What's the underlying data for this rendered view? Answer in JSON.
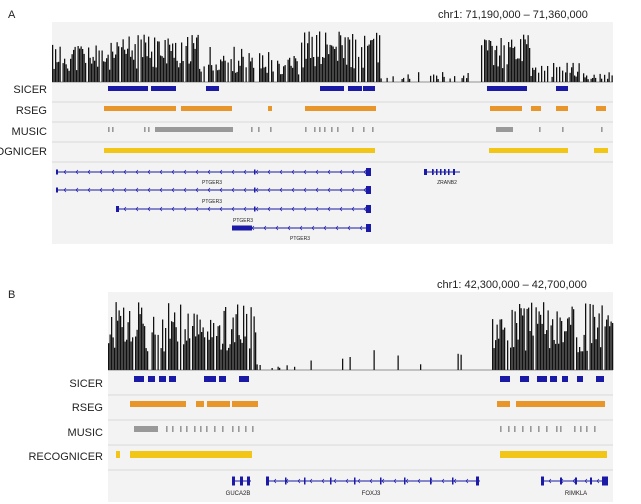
{
  "panels": [
    {
      "letter": "A",
      "coordinate": "chr1: 71,190,000 – 71,360,000",
      "track_labels": [
        "SICER",
        "RSEG",
        "MUSIC",
        "RECOGNICER"
      ],
      "gene_labels": [
        "PTGER3",
        "PTGER3",
        "PTGER3",
        "PTGER3",
        "ZRANB2"
      ]
    },
    {
      "letter": "B",
      "coordinate": "chr1: 42,300,000 – 42,700,000",
      "track_labels": [
        "SICER",
        "RSEG",
        "MUSIC",
        "RECOGNICER"
      ],
      "gene_labels": [
        "GUCA2B",
        "FOXJ3",
        "RIMKLA"
      ]
    }
  ],
  "colors": {
    "signal": "#111111",
    "sicer": "#1a1aa6",
    "rseg": "#e8952a",
    "music": "#999999",
    "recognicer": "#f2c617",
    "gene": "#1a1aa6",
    "background": "#f3f3f3"
  }
}
